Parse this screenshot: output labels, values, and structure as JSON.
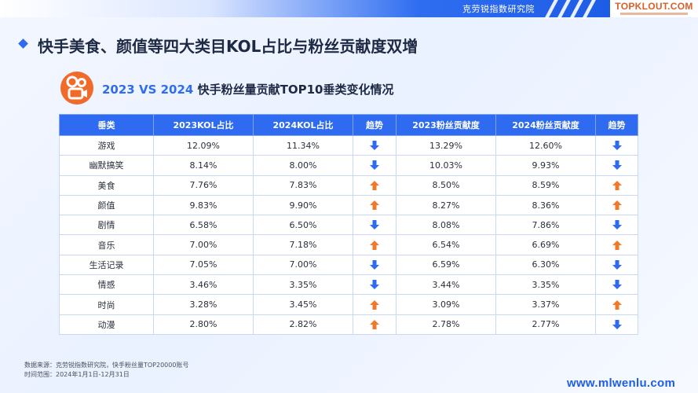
{
  "header": {
    "org_text": "克劳锐指数研究院",
    "brand_name": "TOPKLOUT.COM"
  },
  "page": {
    "title": "快手美食、颜值等四大类目KOL占比与粉丝贡献度双增",
    "subtitle_years": "2023 VS 2024",
    "subtitle_text": "快手粉丝量贡献TOP10垂类变化情况"
  },
  "table": {
    "headers": [
      "垂类",
      "2023KOL占比",
      "2024KOL占比",
      "趋势",
      "2023粉丝贡献度",
      "2024粉丝贡献度",
      "趋势"
    ],
    "rows": [
      {
        "category": "游戏",
        "kol_2023": "12.09%",
        "kol_2024": "11.34%",
        "kol_trend": "down",
        "fan_2023": "13.29%",
        "fan_2024": "12.60%",
        "fan_trend": "down"
      },
      {
        "category": "幽默搞笑",
        "kol_2023": "8.14%",
        "kol_2024": "8.00%",
        "kol_trend": "down",
        "fan_2023": "10.03%",
        "fan_2024": "9.93%",
        "fan_trend": "down"
      },
      {
        "category": "美食",
        "kol_2023": "7.76%",
        "kol_2024": "7.83%",
        "kol_trend": "up",
        "fan_2023": "8.50%",
        "fan_2024": "8.59%",
        "fan_trend": "up"
      },
      {
        "category": "颜值",
        "kol_2023": "9.83%",
        "kol_2024": "9.90%",
        "kol_trend": "up",
        "fan_2023": "8.27%",
        "fan_2024": "8.36%",
        "fan_trend": "up"
      },
      {
        "category": "剧情",
        "kol_2023": "6.58%",
        "kol_2024": "6.50%",
        "kol_trend": "down",
        "fan_2023": "8.08%",
        "fan_2024": "7.86%",
        "fan_trend": "down"
      },
      {
        "category": "音乐",
        "kol_2023": "7.00%",
        "kol_2024": "7.18%",
        "kol_trend": "up",
        "fan_2023": "6.54%",
        "fan_2024": "6.69%",
        "fan_trend": "up"
      },
      {
        "category": "生活记录",
        "kol_2023": "7.05%",
        "kol_2024": "7.00%",
        "kol_trend": "down",
        "fan_2023": "6.59%",
        "fan_2024": "6.30%",
        "fan_trend": "down"
      },
      {
        "category": "情感",
        "kol_2023": "3.46%",
        "kol_2024": "3.35%",
        "kol_trend": "down",
        "fan_2023": "3.44%",
        "fan_2024": "3.35%",
        "fan_trend": "down"
      },
      {
        "category": "时尚",
        "kol_2023": "3.28%",
        "kol_2024": "3.45%",
        "kol_trend": "up",
        "fan_2023": "3.09%",
        "fan_2024": "3.37%",
        "fan_trend": "up"
      },
      {
        "category": "动漫",
        "kol_2023": "2.80%",
        "kol_2024": "2.82%",
        "kol_trend": "up",
        "fan_2023": "2.78%",
        "fan_2024": "2.77%",
        "fan_trend": "down"
      }
    ]
  },
  "trend_colors": {
    "up": "#f07a2a",
    "down": "#2e6bf0"
  },
  "footer": {
    "source": "数据来源：克劳锐指数研究院，快手粉丝量TOP20000账号",
    "period": "时间范围：2024年1月1日-12月31日",
    "watermark": "www.mlwenlu.com"
  }
}
